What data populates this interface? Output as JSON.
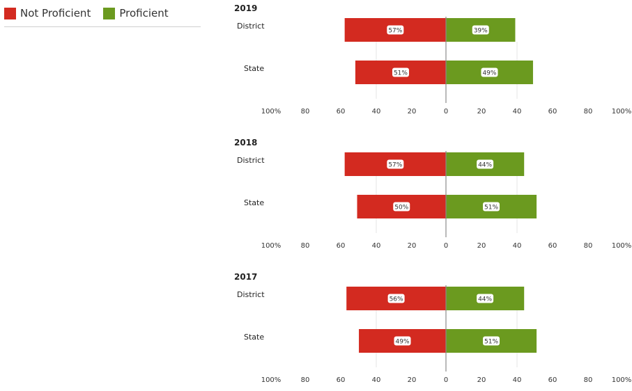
{
  "legend": {
    "not_proficient": {
      "label": "Not Proficient",
      "color": "#d32a20"
    },
    "proficient": {
      "label": "Proficient",
      "color": "#6b9a1f"
    }
  },
  "chart_data": [
    {
      "type": "bar",
      "title": "2019",
      "categories": [
        "District",
        "State"
      ],
      "series": [
        {
          "name": "Not Proficient",
          "values": [
            57,
            51
          ],
          "labels": [
            "57%",
            "51%"
          ],
          "color": "#d32a20"
        },
        {
          "name": "Proficient",
          "values": [
            39,
            49
          ],
          "labels": [
            "39%",
            "49%"
          ],
          "color": "#6b9a1f"
        }
      ],
      "xlim": [
        -100,
        100
      ],
      "tick_labels": [
        "100%",
        "80",
        "60",
        "40",
        "20",
        "0",
        "20",
        "40",
        "60",
        "80",
        "100%"
      ]
    },
    {
      "type": "bar",
      "title": "2018",
      "categories": [
        "District",
        "State"
      ],
      "series": [
        {
          "name": "Not Proficient",
          "values": [
            57,
            50
          ],
          "labels": [
            "57%",
            "50%"
          ],
          "color": "#d32a20"
        },
        {
          "name": "Proficient",
          "values": [
            44,
            51
          ],
          "labels": [
            "44%",
            "51%"
          ],
          "color": "#6b9a1f"
        }
      ],
      "xlim": [
        -100,
        100
      ],
      "tick_labels": [
        "100%",
        "80",
        "60",
        "40",
        "20",
        "0",
        "20",
        "40",
        "60",
        "80",
        "100%"
      ]
    },
    {
      "type": "bar",
      "title": "2017",
      "categories": [
        "District",
        "State"
      ],
      "series": [
        {
          "name": "Not Proficient",
          "values": [
            56,
            49
          ],
          "labels": [
            "56%",
            "49%"
          ],
          "color": "#d32a20"
        },
        {
          "name": "Proficient",
          "values": [
            44,
            51
          ],
          "labels": [
            "44%",
            "51%"
          ],
          "color": "#6b9a1f"
        }
      ],
      "xlim": [
        -100,
        100
      ],
      "tick_labels": [
        "100%",
        "80",
        "60",
        "40",
        "20",
        "0",
        "20",
        "40",
        "60",
        "80",
        "100%"
      ]
    }
  ]
}
